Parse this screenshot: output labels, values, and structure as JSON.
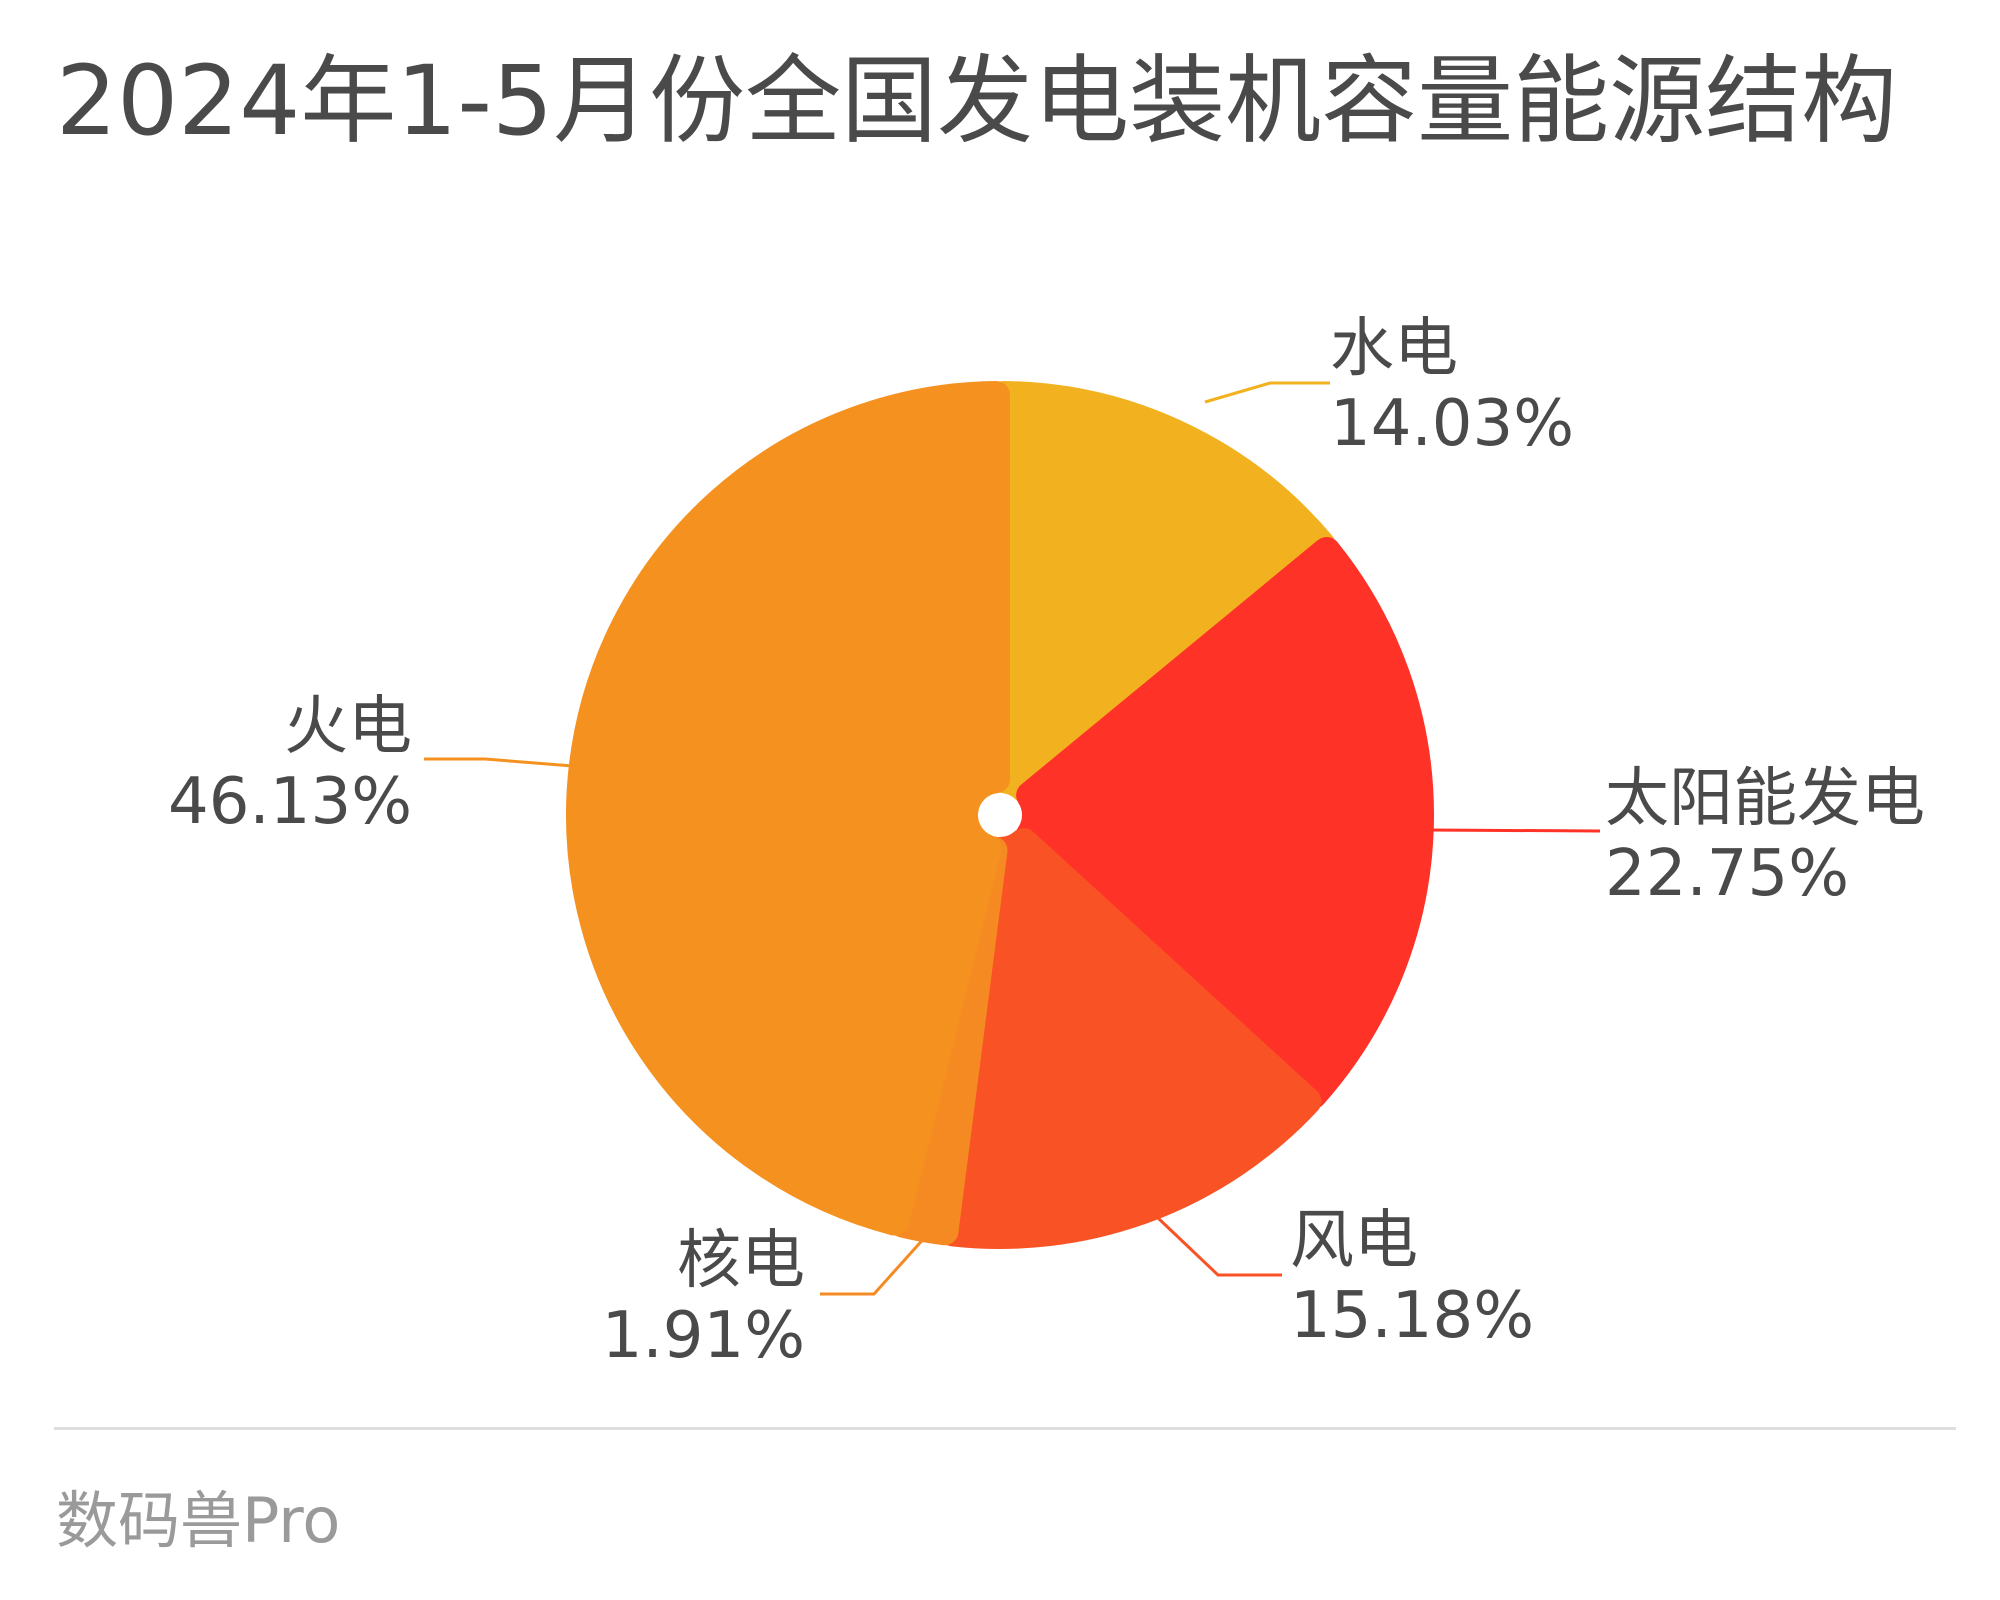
{
  "title": "2024年1-5月份全国发电装机容量能源结构",
  "source": "数码兽Pro",
  "chart_data": {
    "type": "pie",
    "title": "2024年1-5月份全国发电装机容量能源结构",
    "unit": "%",
    "slices": [
      {
        "label": "水电",
        "value_text": "14.03%",
        "value": 14.03,
        "color": "#F2B21F"
      },
      {
        "label": "太阳能发电",
        "value_text": "22.75%",
        "value": 22.75,
        "color": "#FF3228"
      },
      {
        "label": "风电",
        "value_text": "15.18%",
        "value": 15.18,
        "color": "#F95224"
      },
      {
        "label": "核电",
        "value_text": "1.91%",
        "value": 1.91,
        "color": "#F68A22"
      },
      {
        "label": "火电",
        "value_text": "46.13%",
        "value": 46.13,
        "color": "#F5911F"
      }
    ]
  }
}
